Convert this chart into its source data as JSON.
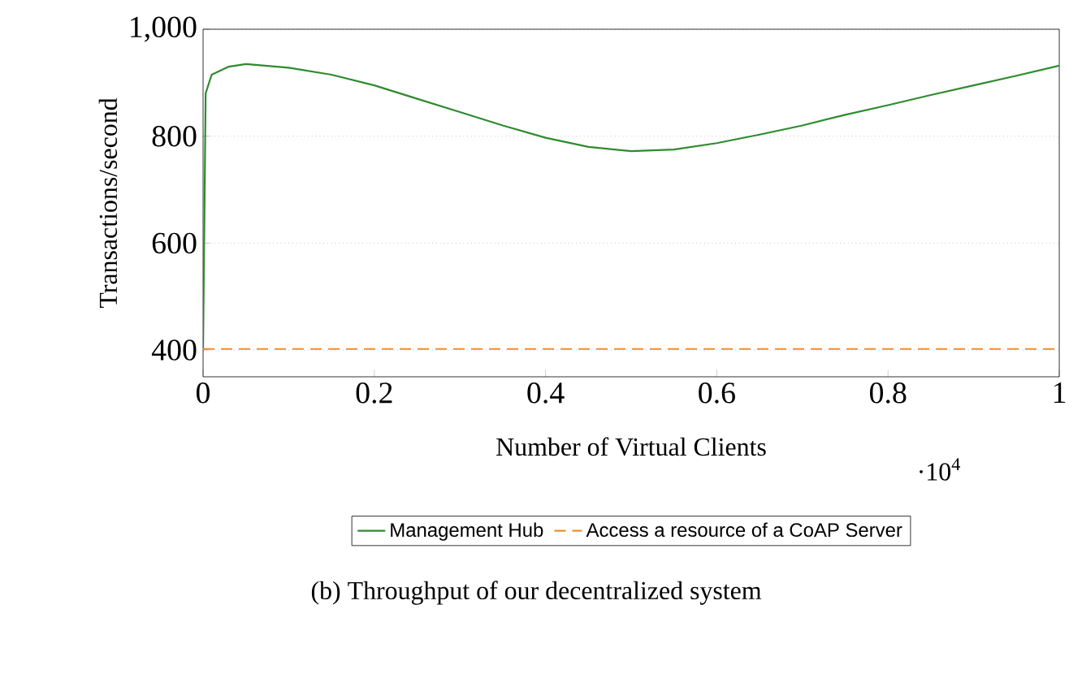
{
  "chart_data": {
    "type": "line",
    "xlabel": "Number of Virtual Clients",
    "ylabel": "Transactions/second",
    "xlim": [
      0,
      1
    ],
    "ylim": [
      350,
      1000
    ],
    "xticks": [
      0,
      0.2,
      0.4,
      0.6,
      0.8,
      1
    ],
    "yticks": [
      400,
      600,
      800,
      {
        "value": 1000,
        "label": "1,000"
      }
    ],
    "grid": "y",
    "legend": "bottom",
    "marker": "none",
    "annotations": [
      "·10$^{4}$",
      "(b) Throughput of our decentralized system"
    ],
    "series": [
      {
        "name": "Management Hub",
        "color": "#2e8b2e",
        "line_style": "solid",
        "x": [
          0,
          0.003,
          0.01,
          0.03,
          0.05,
          0.1,
          0.15,
          0.2,
          0.25,
          0.3,
          0.35,
          0.4,
          0.45,
          0.5,
          0.55,
          0.6,
          0.65,
          0.7,
          0.75,
          0.8,
          0.85,
          0.9,
          0.95,
          1.0
        ],
        "values": [
          400,
          880,
          915,
          930,
          935,
          928,
          915,
          895,
          870,
          845,
          820,
          797,
          780,
          772,
          775,
          787,
          803,
          820,
          840,
          858,
          877,
          895,
          913,
          932
        ]
      },
      {
        "name": "Access a resource of a CoAP Server",
        "color": "#f28e2b",
        "line_style": "dashed",
        "x": [
          0,
          0.5,
          1.0
        ],
        "values": [
          402,
          402,
          402
        ]
      }
    ]
  }
}
